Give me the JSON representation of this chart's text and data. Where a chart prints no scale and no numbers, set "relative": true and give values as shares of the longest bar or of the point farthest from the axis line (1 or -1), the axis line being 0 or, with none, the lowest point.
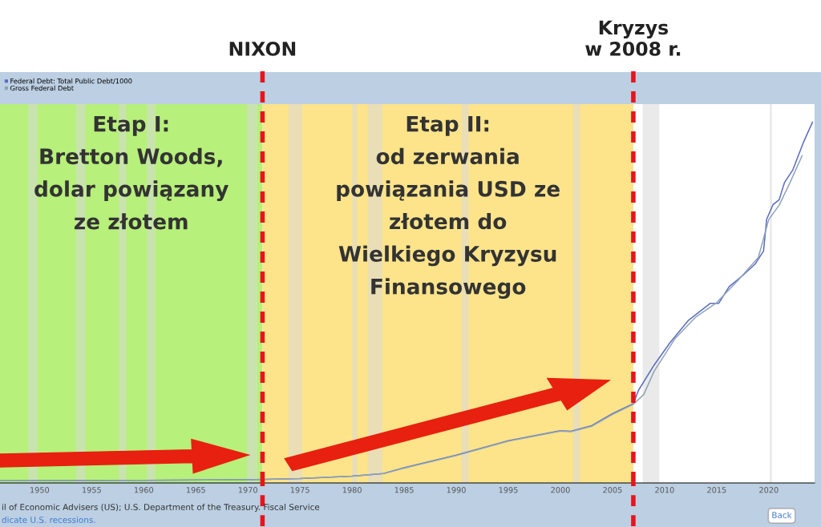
{
  "chart_data": {
    "type": "line",
    "relative": true,
    "legend": "top left",
    "xlim": [
      1946.2,
      2024.4
    ],
    "xticks": [
      1950,
      1955,
      1960,
      1965,
      1970,
      1975,
      1980,
      1985,
      1990,
      1995,
      2000,
      2005,
      2010,
      2015,
      2020
    ],
    "series": [
      {
        "name": "Federal Debt: Total Public Debt/1000",
        "color": "#5b6cc0",
        "x": [
          1946.2,
          1960,
          1970,
          1975,
          1980,
          1983,
          1985,
          1990,
          1995,
          2000,
          2001,
          2003,
          2005,
          2007,
          2007.5,
          2009,
          2010.5,
          2012.3,
          2014.4,
          2015.2,
          2016.2,
          2017.5,
          2018.7,
          2019.5,
          2019.8,
          2020.4,
          2021,
          2021.5,
          2022.3,
          2023.3,
          2024.2
        ],
        "values": [
          0.006,
          0.007,
          0.009,
          0.012,
          0.019,
          0.026,
          0.042,
          0.077,
          0.117,
          0.145,
          0.143,
          0.159,
          0.192,
          0.22,
          0.257,
          0.327,
          0.388,
          0.451,
          0.498,
          0.498,
          0.544,
          0.575,
          0.607,
          0.643,
          0.731,
          0.771,
          0.785,
          0.832,
          0.867,
          0.942,
          1.0
        ]
      },
      {
        "name": "Gross Federal Debt",
        "color": "#8fa3b8",
        "x": [
          1946.2,
          1960,
          1970,
          1975,
          1980,
          1983,
          1985,
          1990,
          1995,
          2000,
          2001,
          2003,
          2005,
          2007,
          2008,
          2009,
          2011,
          2013,
          2015,
          2017,
          2019,
          2020,
          2021,
          2022,
          2023.2
        ],
        "values": [
          0.006,
          0.007,
          0.009,
          0.012,
          0.019,
          0.026,
          0.041,
          0.076,
          0.116,
          0.144,
          0.142,
          0.157,
          0.19,
          0.218,
          0.245,
          0.31,
          0.4,
          0.46,
          0.5,
          0.56,
          0.625,
          0.73,
          0.77,
          0.83,
          0.907
        ]
      }
    ],
    "bands": [
      {
        "axis": "x",
        "from": 1946.2,
        "to": 1971.4,
        "color": "#b7f07a",
        "label": "Etap I:\nBretton Woods,\ndolar powiązany\nze złotem"
      },
      {
        "axis": "x",
        "from": 1971.4,
        "to": 2007.0,
        "color": "#fde48a",
        "label": "Etap II:\nod zerwania\npowiązania USD ze\nzłotem do\nWielkiego Kryzysu\nFinansowego"
      },
      {
        "axis": "x",
        "from": 1948.9,
        "to": 1949.8,
        "color": "#d8d8d8"
      },
      {
        "axis": "x",
        "from": 1953.5,
        "to": 1954.4,
        "color": "#d8d8d8"
      },
      {
        "axis": "x",
        "from": 1957.6,
        "to": 1958.3,
        "color": "#d8d8d8"
      },
      {
        "axis": "x",
        "from": 1960.3,
        "to": 1961.1,
        "color": "#d8d8d8"
      },
      {
        "axis": "x",
        "from": 1969.9,
        "to": 1970.9,
        "color": "#d8d8d8"
      },
      {
        "axis": "x",
        "from": 1973.9,
        "to": 1975.2,
        "color": "#d8d8d8"
      },
      {
        "axis": "x",
        "from": 1980.0,
        "to": 1980.5,
        "color": "#d8d8d8"
      },
      {
        "axis": "x",
        "from": 1981.5,
        "to": 1982.9,
        "color": "#d8d8d8"
      },
      {
        "axis": "x",
        "from": 1990.5,
        "to": 1991.2,
        "color": "#d8d8d8"
      },
      {
        "axis": "x",
        "from": 2001.2,
        "to": 2001.9,
        "color": "#d8d8d8"
      },
      {
        "axis": "x",
        "from": 2007.9,
        "to": 2009.5,
        "color": "#d8d8d8"
      },
      {
        "axis": "x",
        "from": 2020.1,
        "to": 2020.3,
        "color": "#d8d8d8"
      }
    ],
    "ref_lines": [
      {
        "axis": "x",
        "value": 1971.4,
        "label": "NIXON",
        "color": "#e8141c",
        "line_style": "dashed"
      },
      {
        "axis": "x",
        "value": 2007.0,
        "label": "Kryzys\nw 2008 r.",
        "color": "#e8141c",
        "line_style": "dashed"
      }
    ],
    "annotations": [
      "il of Economic Advisers (US); U.S. Department of the Treasury. Fiscal Service",
      "dicate U.S. recessions.",
      "Back"
    ],
    "grid": false,
    "marker": "none",
    "line_style": "solid"
  }
}
